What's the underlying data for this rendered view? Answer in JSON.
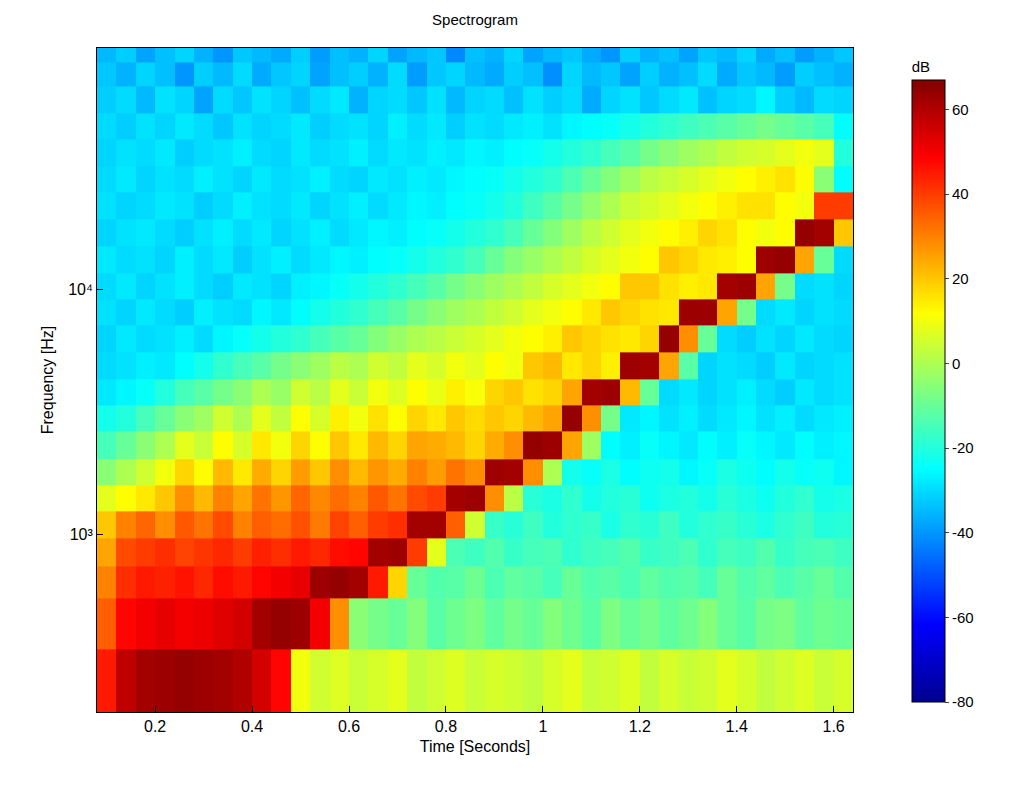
{
  "chart_data": {
    "type": "heatmap",
    "title": "Spectrogram",
    "xlabel": "Time [Seconds]",
    "ylabel": "Frequency [Hz]",
    "log": "y",
    "grid": false,
    "xlim": [
      0.08,
      1.64
    ],
    "ylim": [
      190,
      96000
    ],
    "xticks": [
      0.2,
      0.4,
      0.6,
      0.8,
      1,
      1.2,
      1.4,
      1.6
    ],
    "yticks": [
      {
        "value": 1000,
        "label": "10³"
      },
      {
        "value": 10000,
        "label": "10⁴"
      }
    ],
    "colorbar": {
      "title": "dB",
      "range": [
        -80,
        67
      ],
      "ticks": [
        -80,
        -60,
        -40,
        -20,
        0,
        20,
        40,
        60
      ]
    },
    "x": [
      0.1,
      0.14,
      0.18,
      0.22,
      0.26,
      0.3,
      0.34,
      0.38,
      0.42,
      0.46,
      0.5,
      0.54,
      0.58,
      0.62,
      0.66,
      0.7,
      0.74,
      0.78,
      0.82,
      0.86,
      0.9,
      0.94,
      0.98,
      1.02,
      1.06,
      1.1,
      1.14,
      1.18,
      1.22,
      1.26,
      1.3,
      1.34,
      1.38,
      1.42,
      1.46,
      1.5,
      1.54,
      1.58,
      1.62
    ],
    "y": [
      250,
      470,
      650,
      850,
      1100,
      1400,
      1800,
      2300,
      3000,
      3800,
      4900,
      6300,
      8000,
      10300,
      13200,
      17000,
      21800,
      28000,
      36000,
      46000,
      59000,
      76000,
      92000
    ],
    "z": [
      [
        45,
        58,
        62,
        63,
        64,
        63,
        62,
        60,
        55,
        48,
        10,
        5,
        7,
        4,
        6,
        8,
        3,
        5,
        7,
        4,
        6,
        5,
        3,
        6,
        8,
        4,
        5,
        7,
        3,
        6,
        4,
        5,
        8,
        6,
        3,
        5,
        7,
        4,
        6
      ],
      [
        35,
        48,
        50,
        52,
        50,
        51,
        53,
        55,
        62,
        64,
        63,
        50,
        28,
        -5,
        -8,
        -10,
        -6,
        -12,
        -9,
        -7,
        -11,
        -8,
        -10,
        -6,
        -9,
        -12,
        -7,
        -10,
        -8,
        -11,
        -9,
        -6,
        -10,
        -12,
        -8,
        -7,
        -11,
        -9,
        -10
      ],
      [
        30,
        42,
        45,
        44,
        46,
        43,
        47,
        45,
        48,
        50,
        52,
        63,
        64,
        62,
        45,
        18,
        -10,
        -13,
        -12,
        -9,
        -14,
        -11,
        -12,
        -15,
        -10,
        -13,
        -12,
        -14,
        -11,
        -13,
        -12,
        -15,
        -10,
        -13,
        -11,
        -14,
        -12,
        -10,
        -13
      ],
      [
        25,
        38,
        40,
        42,
        39,
        41,
        43,
        40,
        44,
        42,
        45,
        43,
        47,
        48,
        62,
        63,
        40,
        8,
        -14,
        -16,
        -13,
        -17,
        -15,
        -14,
        -18,
        -16,
        -15,
        -13,
        -17,
        -16,
        -14,
        -18,
        -15,
        -16,
        -13,
        -17,
        -15,
        -14,
        -16
      ],
      [
        20,
        30,
        34,
        28,
        36,
        32,
        38,
        30,
        35,
        33,
        37,
        31,
        39,
        35,
        40,
        42,
        62,
        62,
        35,
        5,
        -17,
        -19,
        -16,
        -20,
        -18,
        -17,
        -21,
        -18,
        -19,
        -16,
        -20,
        -18,
        -17,
        -19,
        -21,
        -18,
        -16,
        -20,
        -19
      ],
      [
        8,
        12,
        15,
        20,
        28,
        22,
        30,
        25,
        32,
        27,
        34,
        29,
        33,
        30,
        36,
        32,
        38,
        40,
        62,
        63,
        28,
        2,
        -19,
        -21,
        -18,
        -22,
        -20,
        -19,
        -23,
        -21,
        -20,
        -22,
        -19,
        -21,
        -23,
        -20,
        -18,
        -22,
        -21
      ],
      [
        -5,
        0,
        5,
        10,
        18,
        12,
        22,
        15,
        24,
        18,
        26,
        20,
        28,
        22,
        27,
        24,
        30,
        26,
        32,
        28,
        63,
        62,
        28,
        0,
        -22,
        -24,
        -21,
        -25,
        -23,
        -22,
        -26,
        -24,
        -21,
        -23,
        -25,
        -22,
        -24,
        -23,
        -26
      ],
      [
        -15,
        -10,
        -5,
        0,
        8,
        4,
        12,
        6,
        15,
        10,
        18,
        12,
        20,
        15,
        22,
        18,
        25,
        24,
        22,
        18,
        24,
        28,
        64,
        63,
        25,
        -2,
        -25,
        -27,
        -24,
        -26,
        -28,
        -25,
        -27,
        -24,
        -26,
        -28,
        -25,
        -27,
        -26
      ],
      [
        -22,
        -20,
        -15,
        -10,
        -5,
        -2,
        5,
        0,
        8,
        3,
        12,
        6,
        14,
        10,
        16,
        12,
        18,
        15,
        20,
        17,
        20,
        18,
        22,
        25,
        64,
        28,
        -8,
        -28,
        -26,
        -29,
        -27,
        -30,
        -28,
        -26,
        -29,
        -27,
        -30,
        -28,
        -27
      ],
      [
        -28,
        -26,
        -24,
        -20,
        -15,
        -12,
        -8,
        -5,
        0,
        -3,
        5,
        2,
        8,
        4,
        10,
        7,
        12,
        9,
        14,
        11,
        18,
        20,
        16,
        18,
        25,
        62,
        63,
        22,
        -10,
        -30,
        -28,
        -31,
        -29,
        -27,
        -30,
        -32,
        -28,
        -30,
        -29
      ],
      [
        -30,
        -29,
        -27,
        -28,
        -25,
        -22,
        -18,
        -15,
        -12,
        -8,
        -5,
        -2,
        2,
        0,
        5,
        3,
        8,
        6,
        10,
        8,
        12,
        10,
        20,
        22,
        15,
        18,
        14,
        63,
        62,
        25,
        -12,
        -31,
        -29,
        -30,
        -32,
        -28,
        -31,
        -30,
        -29
      ],
      [
        -31,
        -28,
        -30,
        -29,
        -27,
        -30,
        -26,
        -24,
        -22,
        -20,
        -18,
        -15,
        -12,
        -10,
        -6,
        -3,
        0,
        2,
        4,
        6,
        8,
        10,
        12,
        14,
        20,
        18,
        16,
        15,
        18,
        64,
        28,
        -10,
        -30,
        -32,
        -29,
        -31,
        -28,
        -30,
        -31
      ],
      [
        -29,
        -31,
        -28,
        -30,
        -32,
        -27,
        -29,
        -30,
        -26,
        -28,
        -25,
        -22,
        -20,
        -18,
        -15,
        -12,
        -8,
        -5,
        -2,
        0,
        3,
        5,
        8,
        10,
        12,
        15,
        20,
        18,
        16,
        15,
        63,
        63,
        25,
        -8,
        -30,
        -28,
        -31,
        -29,
        -30
      ],
      [
        -30,
        -28,
        -31,
        -29,
        -27,
        -30,
        -32,
        -28,
        -29,
        -31,
        -27,
        -26,
        -24,
        -22,
        -20,
        -18,
        -15,
        -12,
        -8,
        -5,
        -2,
        0,
        3,
        6,
        8,
        10,
        12,
        20,
        20,
        16,
        14,
        15,
        62,
        63,
        25,
        -8,
        -30,
        -29,
        -31
      ],
      [
        -28,
        -30,
        -29,
        -31,
        -27,
        -30,
        -28,
        -32,
        -29,
        -27,
        -30,
        -28,
        -26,
        -27,
        -25,
        -24,
        -22,
        -20,
        -18,
        -15,
        -10,
        -6,
        -3,
        0,
        3,
        6,
        8,
        10,
        12,
        20,
        18,
        15,
        14,
        12,
        63,
        64,
        25,
        -10,
        -30
      ],
      [
        -31,
        -29,
        -28,
        -30,
        -32,
        -29,
        -27,
        -30,
        -28,
        -31,
        -29,
        -27,
        -30,
        -28,
        -26,
        -27,
        -25,
        -24,
        -22,
        -20,
        -18,
        -15,
        -10,
        -6,
        -2,
        2,
        5,
        8,
        10,
        12,
        14,
        18,
        16,
        12,
        10,
        12,
        64,
        62,
        20
      ],
      [
        -29,
        -31,
        -30,
        -28,
        -29,
        -32,
        -30,
        -27,
        -29,
        -30,
        -28,
        -31,
        -29,
        -27,
        -30,
        -28,
        -26,
        -27,
        -25,
        -24,
        -22,
        -20,
        -16,
        -12,
        -8,
        -4,
        0,
        4,
        6,
        8,
        10,
        12,
        14,
        16,
        16,
        12,
        10,
        40,
        40
      ],
      [
        -30,
        -28,
        -31,
        -29,
        -30,
        -27,
        -29,
        -31,
        -28,
        -30,
        -29,
        -27,
        -30,
        -31,
        -28,
        -29,
        -27,
        -28,
        -26,
        -25,
        -24,
        -22,
        -20,
        -18,
        -14,
        -10,
        -6,
        -2,
        2,
        4,
        6,
        8,
        10,
        12,
        14,
        16,
        12,
        -5,
        -25
      ],
      [
        -31,
        -29,
        -30,
        -28,
        -32,
        -30,
        -29,
        -27,
        -30,
        -31,
        -28,
        -30,
        -29,
        -27,
        -30,
        -28,
        -29,
        -27,
        -28,
        -26,
        -27,
        -25,
        -24,
        -22,
        -20,
        -18,
        -15,
        -12,
        -8,
        -5,
        -2,
        0,
        3,
        5,
        6,
        8,
        10,
        8,
        -20
      ],
      [
        -30,
        -32,
        -29,
        -31,
        -28,
        -30,
        -33,
        -29,
        -31,
        -30,
        -28,
        -32,
        -30,
        -29,
        -31,
        -27,
        -30,
        -28,
        -32,
        -29,
        -30,
        -28,
        -27,
        -29,
        -26,
        -25,
        -24,
        -22,
        -20,
        -18,
        -16,
        -14,
        -12,
        -10,
        -8,
        -10,
        -12,
        -15,
        -25
      ],
      [
        -32,
        -30,
        -35,
        -29,
        -31,
        -38,
        -30,
        -33,
        -29,
        -31,
        -34,
        -30,
        -28,
        -36,
        -31,
        -30,
        -33,
        -29,
        -35,
        -31,
        -30,
        -34,
        -29,
        -32,
        -30,
        -37,
        -31,
        -29,
        -33,
        -30,
        -28,
        -34,
        -31,
        -30,
        -26,
        -32,
        -35,
        -30,
        -31
      ],
      [
        -33,
        -36,
        -31,
        -34,
        -40,
        -32,
        -35,
        -30,
        -37,
        -33,
        -31,
        -38,
        -34,
        -32,
        -36,
        -30,
        -39,
        -33,
        -31,
        -35,
        -37,
        -32,
        -34,
        -41,
        -31,
        -35,
        -33,
        -38,
        -32,
        -36,
        -34,
        -30,
        -37,
        -33,
        -35,
        -39,
        -32,
        -34,
        -36
      ],
      [
        -35,
        -32,
        -38,
        -34,
        -31,
        -36,
        -40,
        -33,
        -35,
        -37,
        -32,
        -39,
        -34,
        -36,
        -31,
        -38,
        -35,
        -33,
        -42,
        -34,
        -36,
        -31,
        -38,
        -35,
        -33,
        -37,
        -40,
        -32,
        -36,
        -34,
        -38,
        -33,
        -35,
        -31,
        -37,
        -34,
        -39,
        -36,
        -33
      ]
    ]
  }
}
